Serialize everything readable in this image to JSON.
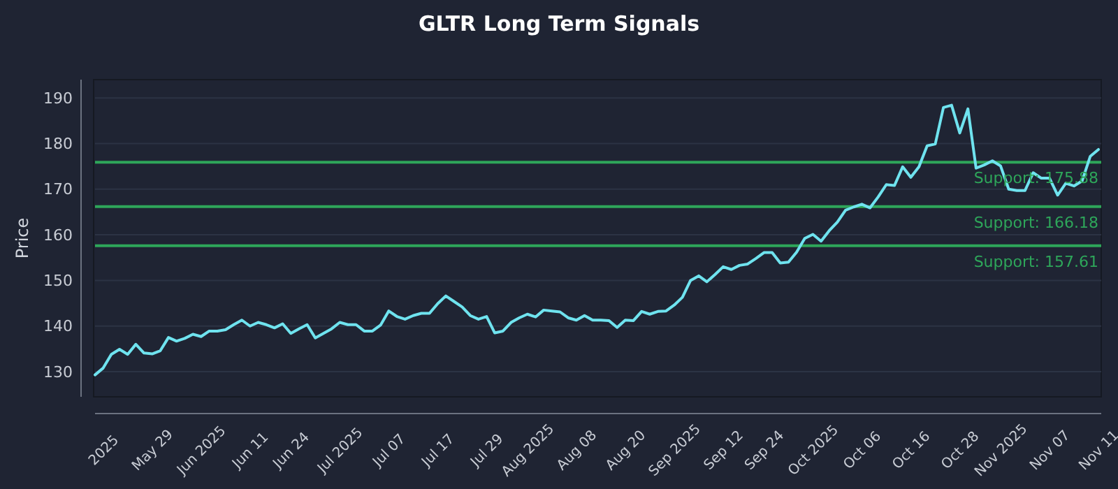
{
  "chart_data": {
    "type": "line",
    "title": "GLTR Long Term Signals",
    "ylabel": "Price",
    "categories": [
      null,
      "2025",
      null,
      null,
      null,
      null,
      null,
      "May 29",
      null,
      null,
      null,
      null,
      null,
      "Jun 2025",
      null,
      null,
      null,
      null,
      null,
      "Jun 11",
      null,
      null,
      null,
      null,
      "Jun 24",
      null,
      null,
      null,
      null,
      null,
      "Jul 2025",
      null,
      null,
      null,
      null,
      null,
      "Jul 07",
      null,
      null,
      null,
      null,
      null,
      "Jul 17",
      null,
      null,
      null,
      null,
      null,
      "Jul 29",
      null,
      null,
      null,
      null,
      "Aug 2025",
      null,
      null,
      null,
      null,
      null,
      "Aug 08",
      null,
      null,
      null,
      null,
      null,
      "Aug 20",
      null,
      null,
      null,
      null,
      null,
      "Sep 2025",
      null,
      null,
      null,
      null,
      null,
      "Sep 12",
      null,
      null,
      null,
      null,
      "Sep 24",
      null,
      null,
      null,
      null,
      null,
      "Oct 2025",
      null,
      null,
      null,
      null,
      null,
      "Oct 06",
      null,
      null,
      null,
      null,
      null,
      "Oct 16",
      null,
      null,
      null,
      null,
      null,
      "Oct 28",
      null,
      null,
      null,
      null,
      "Nov 2025",
      null,
      null,
      null,
      null,
      null,
      "Nov 07",
      null,
      null,
      null,
      null,
      null,
      "Nov 11"
    ],
    "series": [
      {
        "color": "#6fe3ef",
        "values": [
          129.3,
          130.8,
          133.8,
          134.9,
          133.8,
          136,
          134.1,
          133.9,
          134.6,
          137.5,
          136.7,
          137.3,
          138.2,
          137.7,
          138.9,
          138.9,
          139.2,
          140.3,
          141.3,
          140,
          140.8,
          140.3,
          139.6,
          140.5,
          138.4,
          139.4,
          140.3,
          137.4,
          138.4,
          139.4,
          140.8,
          140.3,
          140.3,
          138.9,
          138.9,
          140.2,
          143.3,
          142.1,
          141.5,
          142.3,
          142.8,
          142.8,
          144.9,
          146.6,
          145.4,
          144.2,
          142.3,
          141.5,
          142.1,
          138.5,
          138.9,
          140.8,
          141.8,
          142.6,
          142,
          143.5,
          143.3,
          143.1,
          141.8,
          141.3,
          142.3,
          141.3,
          141.3,
          141.2,
          139.7,
          141.3,
          141.2,
          143.2,
          142.6,
          143.2,
          143.3,
          144.6,
          146.3,
          150,
          151,
          149.7,
          151.3,
          153,
          152.4,
          153.3,
          153.6,
          154.8,
          156.1,
          156.1,
          153.8,
          154,
          156.2,
          159.2,
          160.1,
          158.6,
          160.9,
          162.8,
          165.4,
          166.1,
          166.7,
          165.9,
          168.3,
          171,
          170.8,
          174.9,
          172.6,
          174.9,
          179.5,
          179.9,
          187.9,
          188.4,
          182.3,
          187.6,
          174.6,
          175.3,
          176.2,
          175.1,
          170,
          169.7,
          169.7,
          173.6,
          172.4,
          172.4,
          168.7,
          171.3,
          170.7,
          171.8,
          177.2,
          178.7
        ]
      }
    ],
    "ylim": [
      124.5,
      194
    ],
    "yticks": [
      130,
      140,
      150,
      160,
      170,
      180,
      190
    ],
    "grid": "y",
    "marker": "none",
    "line_style": "solid",
    "ref_lines": [
      {
        "axis": "y",
        "value": 175.88,
        "label": "Support: 175.88",
        "color": "#2ea65a"
      },
      {
        "axis": "y",
        "value": 166.18,
        "label": "Support: 166.18",
        "color": "#2ea65a"
      },
      {
        "axis": "y",
        "value": 157.61,
        "label": "Support: 157.61",
        "color": "#2ea65a"
      }
    ]
  }
}
